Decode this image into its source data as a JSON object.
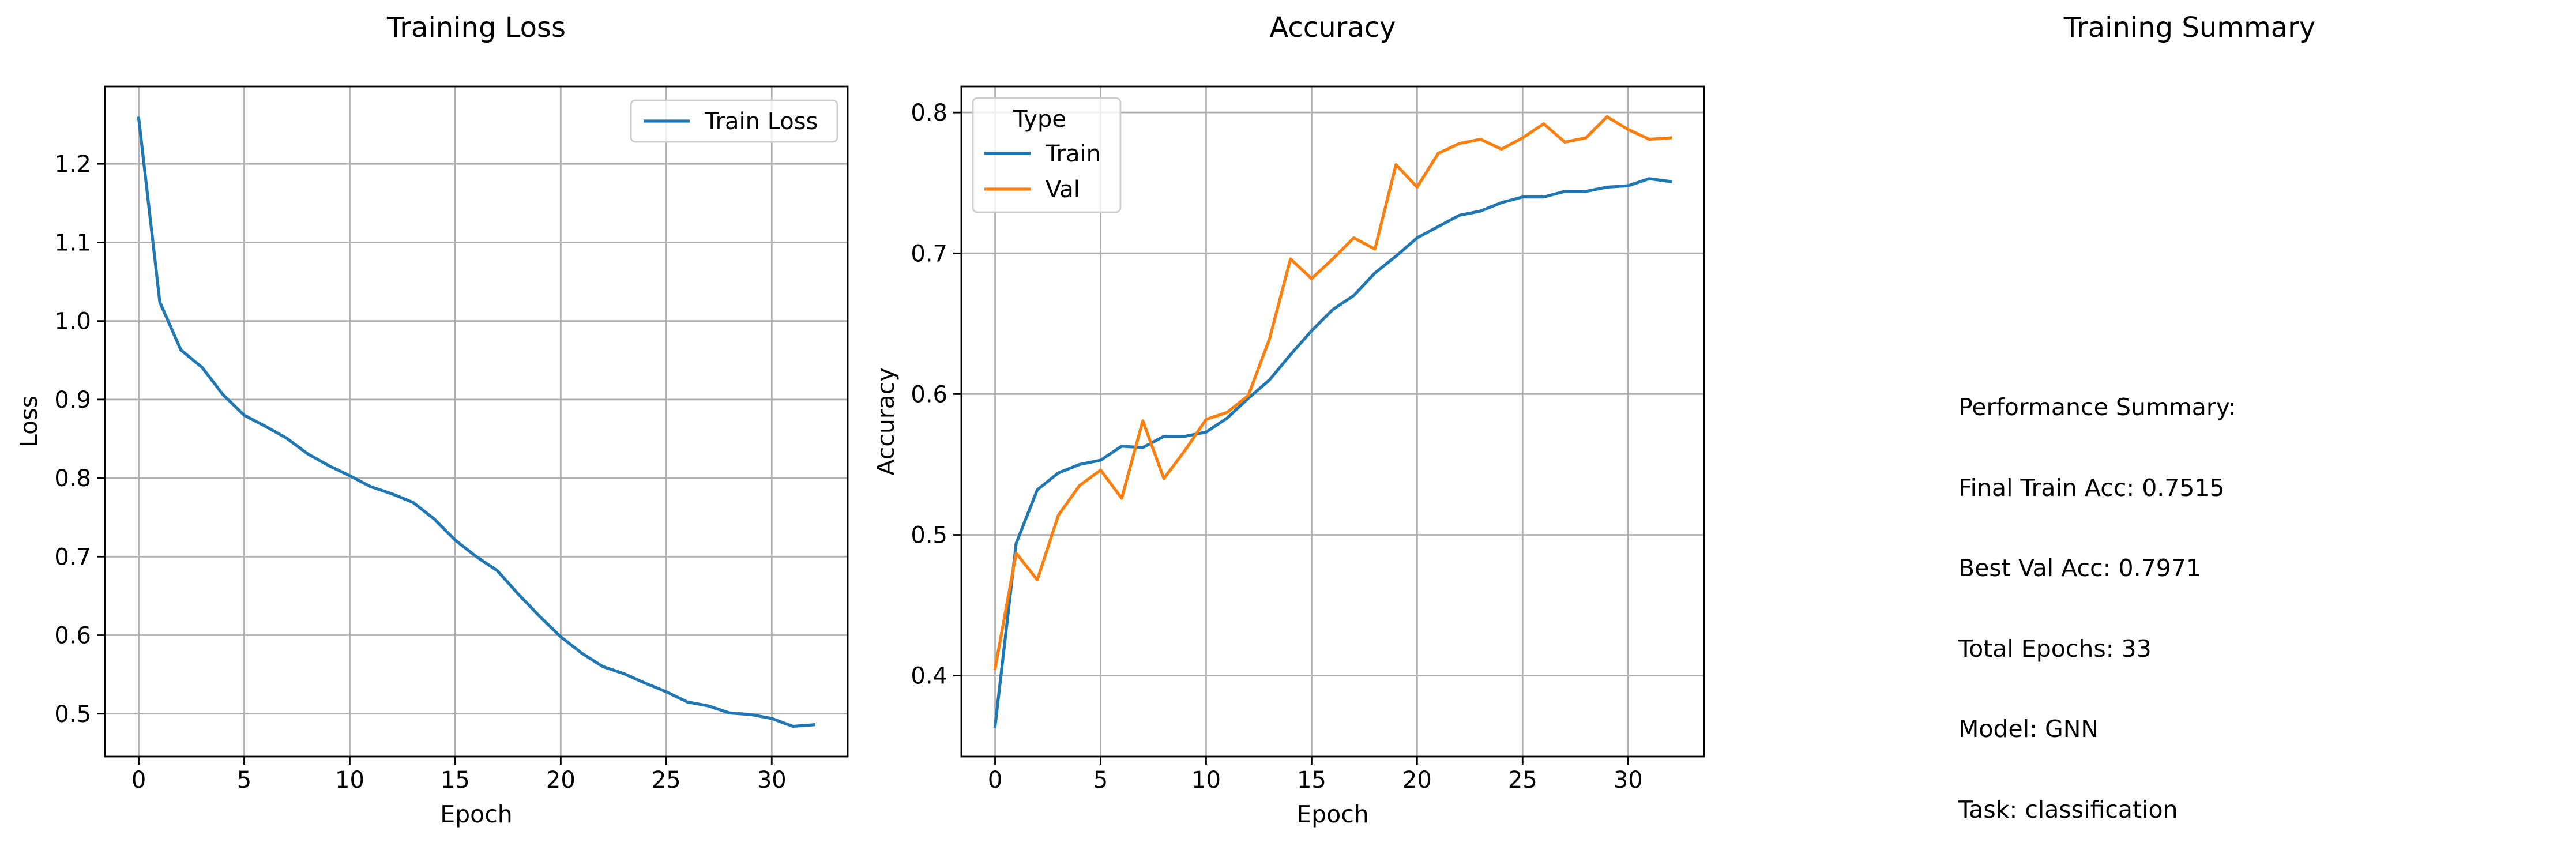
{
  "chart_data": [
    {
      "type": "line",
      "title": "Training Loss",
      "xlabel": "Epoch",
      "ylabel": "Loss",
      "xlim": [
        -1.6,
        33.6
      ],
      "ylim": [
        0.4455,
        1.2985
      ],
      "x_ticks": [
        0,
        5,
        10,
        15,
        20,
        25,
        30
      ],
      "y_ticks": [
        0.5,
        0.6,
        0.7,
        0.8,
        0.9,
        1.0,
        1.1,
        1.2
      ],
      "y_tick_labels": [
        "0.5",
        "0.6",
        "0.7",
        "0.8",
        "0.9",
        "1.0",
        "1.1",
        "1.2"
      ],
      "grid": true,
      "legend_position": "upper right",
      "series": [
        {
          "name": "Train Loss",
          "color": "#1f77b4",
          "x": [
            0,
            1,
            2,
            3,
            4,
            5,
            6,
            7,
            8,
            9,
            10,
            11,
            12,
            13,
            14,
            15,
            16,
            17,
            18,
            19,
            20,
            21,
            22,
            23,
            24,
            25,
            26,
            27,
            28,
            29,
            30,
            31,
            32
          ],
          "values": [
            1.258,
            1.024,
            0.963,
            0.941,
            0.906,
            0.88,
            0.866,
            0.851,
            0.831,
            0.816,
            0.803,
            0.789,
            0.78,
            0.769,
            0.748,
            0.721,
            0.7,
            0.682,
            0.652,
            0.624,
            0.598,
            0.577,
            0.56,
            0.551,
            0.539,
            0.528,
            0.515,
            0.51,
            0.501,
            0.499,
            0.494,
            0.484,
            0.486
          ]
        }
      ]
    },
    {
      "type": "line",
      "title": "Accuracy",
      "xlabel": "Epoch",
      "ylabel": "Accuracy",
      "xlim": [
        -1.6,
        33.6
      ],
      "ylim": [
        0.3425,
        0.8185
      ],
      "x_ticks": [
        0,
        5,
        10,
        15,
        20,
        25,
        30
      ],
      "y_ticks": [
        0.4,
        0.5,
        0.6,
        0.7,
        0.8
      ],
      "y_tick_labels": [
        "0.4",
        "0.5",
        "0.6",
        "0.7",
        "0.8"
      ],
      "grid": true,
      "legend_title": "Type",
      "legend_position": "upper left",
      "series": [
        {
          "name": "Train",
          "color": "#1f77b4",
          "x": [
            0,
            1,
            2,
            3,
            4,
            5,
            6,
            7,
            8,
            9,
            10,
            11,
            12,
            13,
            14,
            15,
            16,
            17,
            18,
            19,
            20,
            21,
            22,
            23,
            24,
            25,
            26,
            27,
            28,
            29,
            30,
            31,
            32
          ],
          "values": [
            0.364,
            0.494,
            0.532,
            0.544,
            0.55,
            0.553,
            0.563,
            0.562,
            0.57,
            0.57,
            0.573,
            0.583,
            0.597,
            0.61,
            0.628,
            0.645,
            0.66,
            0.67,
            0.686,
            0.698,
            0.711,
            0.719,
            0.727,
            0.73,
            0.736,
            0.74,
            0.74,
            0.744,
            0.744,
            0.747,
            0.748,
            0.753,
            0.751
          ]
        },
        {
          "name": "Val",
          "color": "#ff7f0e",
          "x": [
            0,
            1,
            2,
            3,
            4,
            5,
            6,
            7,
            8,
            9,
            10,
            11,
            12,
            13,
            14,
            15,
            16,
            17,
            18,
            19,
            20,
            21,
            22,
            23,
            24,
            25,
            26,
            27,
            28,
            29,
            30,
            31,
            32
          ],
          "values": [
            0.405,
            0.487,
            0.468,
            0.514,
            0.535,
            0.546,
            0.526,
            0.581,
            0.54,
            0.56,
            0.582,
            0.587,
            0.599,
            0.639,
            0.696,
            0.682,
            0.696,
            0.711,
            0.703,
            0.763,
            0.747,
            0.771,
            0.778,
            0.781,
            0.774,
            0.782,
            0.792,
            0.779,
            0.782,
            0.797,
            0.788,
            0.781,
            0.782
          ]
        }
      ]
    }
  ],
  "summary": {
    "title": "Training Summary",
    "lines": [
      "Performance Summary:",
      "Final Train Acc: 0.7515",
      "Best Val Acc: 0.7971",
      "Total Epochs: 33",
      "Model: GNN",
      "Task: classification"
    ]
  }
}
